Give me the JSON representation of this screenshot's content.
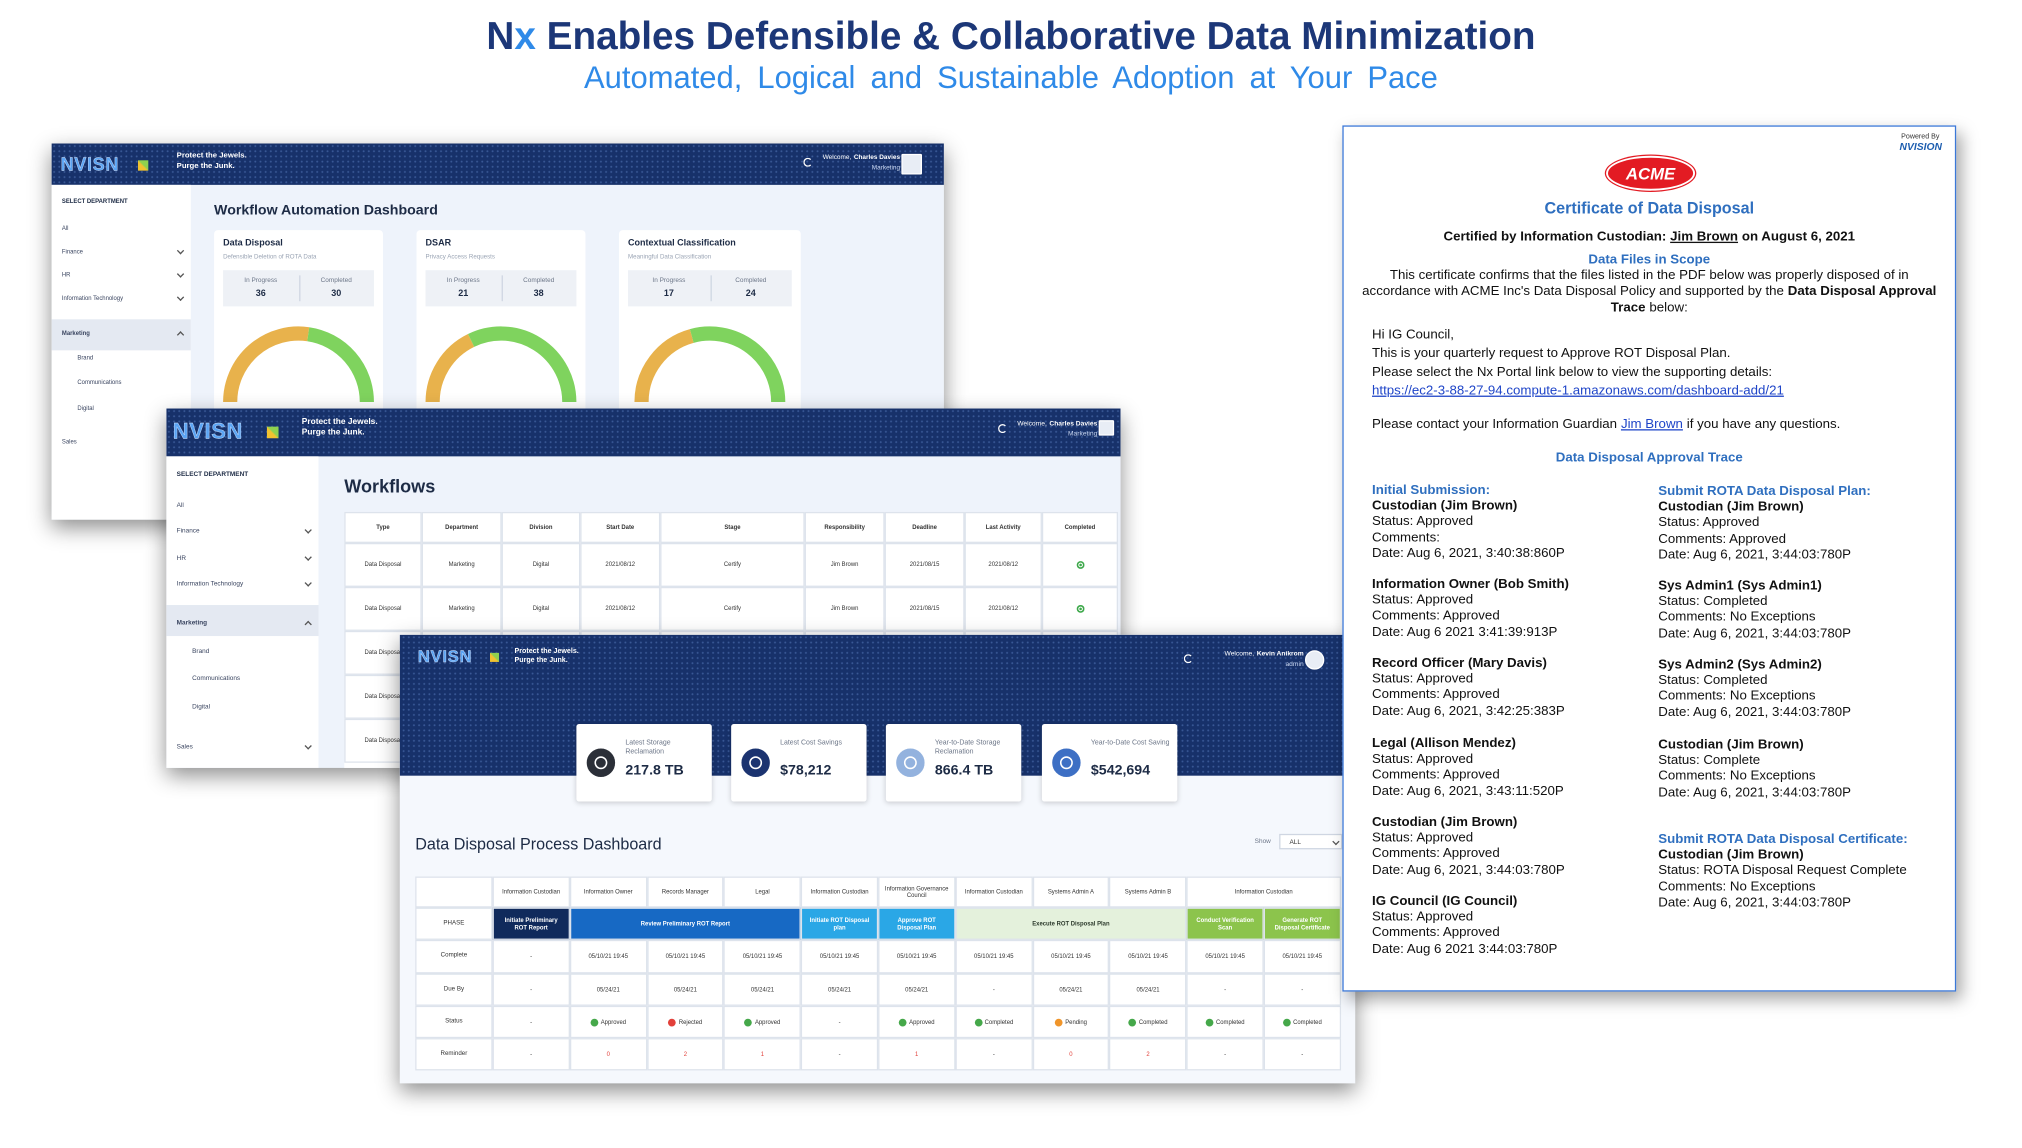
{
  "title": {
    "brand_n": "N",
    "brand_x": "x",
    "text": "Enables Defensible & Collaborative Data Minimization"
  },
  "subtitle": "Automated, Logical and Sustainable Adoption at Your Pace",
  "app": {
    "logo": "NVISN",
    "tagline": [
      "Protect the Jewels.",
      "Purge the Junk."
    ],
    "welcome": "Welcome,",
    "department_heading": "SELECT DEPARTMENT",
    "departments": [
      "All",
      "Finance",
      "HR",
      "Information Technology",
      "Marketing",
      "Brand",
      "Communications",
      "Digital",
      "Sales"
    ]
  },
  "workflow_dashboard": {
    "user": "Charles Davies",
    "role": "Marketing",
    "title": "Workflow Automation Dashboard",
    "in_progress_label": "In Progress",
    "completed_label": "Completed",
    "gauge_colors": {
      "in_progress": "#e8b24c",
      "completed": "#7fd35e"
    },
    "cards": [
      {
        "title": "Data Disposal",
        "subtitle": "Defensible Deletion of ROTA Data",
        "in_progress": 36,
        "completed": 30
      },
      {
        "title": "DSAR",
        "subtitle": "Privacy Access Requests",
        "in_progress": 21,
        "completed": 38
      },
      {
        "title": "Contextual Classification",
        "subtitle": "Meaningful Data Classification",
        "in_progress": 17,
        "completed": 24
      }
    ]
  },
  "workflows": {
    "user": "Charles Davies",
    "role": "Marketing",
    "title": "Workflows",
    "columns": [
      "Type",
      "Department",
      "Division",
      "Start Date",
      "Stage",
      "Responsibility",
      "Deadline",
      "Last Activity",
      "Completed"
    ],
    "rows": [
      [
        "Data Disposal",
        "Marketing",
        "Digital",
        "2021/08/12",
        "Certify",
        "Jim Brown",
        "2021/08/15",
        "2021/08/12"
      ],
      [
        "Data Disposal",
        "Marketing",
        "Digital",
        "2021/08/12",
        "Certify",
        "Jim Brown",
        "2021/08/15",
        "2021/08/12"
      ],
      [
        "Data Disposal"
      ],
      [
        "Data Disposal"
      ],
      [
        "Data Disposal"
      ]
    ]
  },
  "disposal_dashboard": {
    "user": "Kevin Anikrom",
    "role": "admin",
    "kpis": [
      {
        "label": "Latest Storage Reclamation",
        "value": "217.8 TB",
        "color": "#2b2f38"
      },
      {
        "label": "Latest Cost Savings",
        "value": "$78,212",
        "color": "#1b3370"
      },
      {
        "label": "Year-to-Date Storage Reclamation",
        "value": "866.4 TB",
        "color": "#93b2de"
      },
      {
        "label": "Year-to-Date Cost Saving",
        "value": "$542,694",
        "color": "#3d6fc4"
      }
    ],
    "title": "Data Disposal Process Dashboard",
    "show_label": "Show",
    "show_value": "ALL",
    "roles": [
      {
        "label": "Information Custodian",
        "span": 1
      },
      {
        "label": "Information Owner",
        "span": 1
      },
      {
        "label": "Records Manager",
        "span": 1
      },
      {
        "label": "Legal",
        "span": 1
      },
      {
        "label": "Information Custodian",
        "span": 1
      },
      {
        "label": "Information Governance Council",
        "span": 1
      },
      {
        "label": "Information Custodian",
        "span": 1
      },
      {
        "label": "Systems Admin A",
        "span": 1
      },
      {
        "label": "Systems Admin B",
        "span": 1
      },
      {
        "label": "Information Custodian",
        "span": 2
      }
    ],
    "phase_label": "PHASE",
    "phases": [
      {
        "label": "Initiate Preliminary ROT Report",
        "span": 1,
        "color": "#102a5c",
        "text_color": "#ffffff"
      },
      {
        "label": "Review Preliminary ROT Report",
        "span": 3,
        "color": "#1769c4",
        "text_color": "#ffffff"
      },
      {
        "label": "Initiate ROT Disposal plan",
        "span": 1,
        "color": "#2aa7e6",
        "text_color": "#ffffff"
      },
      {
        "label": "Approve ROT Disposal Plan",
        "span": 1,
        "color": "#2aa7e6",
        "text_color": "#ffffff"
      },
      {
        "label": "Execute ROT Disposal Plan",
        "span": 3,
        "color": "#e4f1dc",
        "text_color": "#2c3a2c"
      },
      {
        "label": "Conduct Verification Scan",
        "span": 1,
        "color": "#8cc44c",
        "text_color": "#ffffff"
      },
      {
        "label": "Generate ROT Disposal Certificate",
        "span": 1,
        "color": "#8cc44c",
        "text_color": "#ffffff"
      }
    ],
    "status_colors": {
      "Approved": "#45a84a",
      "Completed": "#45a84a",
      "Rejected": "#e2403a",
      "Pending": "#f0952a"
    },
    "rows": [
      {
        "label": "Complete",
        "kind": "text",
        "cells": [
          "-",
          "05/10/21 19:45",
          "05/10/21 19:45",
          "05/10/21 19:45",
          "05/10/21 19:45",
          "05/10/21 19:45",
          "05/10/21 19:45",
          "05/10/21 19:45",
          "05/10/21 19:45",
          "05/10/21 19:45",
          "05/10/21 19:45"
        ]
      },
      {
        "label": "Due By",
        "kind": "text",
        "cells": [
          "-",
          "05/24/21",
          "05/24/21",
          "05/24/21",
          "05/24/21",
          "05/24/21",
          "-",
          "05/24/21",
          "05/24/21",
          "-",
          "-"
        ]
      },
      {
        "label": "Status",
        "kind": "status",
        "cells": [
          "-",
          "Approved",
          "Rejected",
          "Approved",
          "-",
          "Approved",
          "Completed",
          "Pending",
          "Completed",
          "Completed",
          "Completed"
        ]
      },
      {
        "label": "Reminder",
        "kind": "reminder",
        "cells": [
          "-",
          0,
          2,
          1,
          "-",
          1,
          "-",
          0,
          2,
          "-",
          "-"
        ]
      }
    ]
  },
  "certificate": {
    "powered_by": "Powered By",
    "powered_logo": "NVISION",
    "company": "ACME",
    "title": "Certificate of Data Disposal",
    "certified": [
      "Certified by Information Custodian:",
      "Jim Brown",
      "on August 6, 2021"
    ],
    "files_heading": "Data Files in Scope",
    "statement": [
      "This certificate confirms that the files listed in the PDF below was properly disposed of in accordance with ACME Inc's Data Disposal Policy and supported by the",
      "Data Disposal Approval Trace",
      "below:"
    ],
    "greeting": "Hi IG Council,",
    "request": "This is your quarterly request to Approve ROT Disposal Plan.",
    "instruction": "Please select the Nx Portal link below to view the supporting details:",
    "link": "https://ec2-3-88-27-94.compute-1.amazonaws.com/dashboard-add/21",
    "contact": [
      "Please contact your Information Guardian",
      "Jim Brown",
      "if you have any questions."
    ],
    "trace_heading": "Data Disposal Approval Trace",
    "left": [
      {
        "heading": "Initial Submission:",
        "name": "Custodian (Jim Brown)",
        "lines": [
          "Status: Approved",
          "Comments:",
          "Date: Aug 6, 2021, 3:40:38:860P"
        ]
      },
      {
        "name": "Information Owner (Bob Smith)",
        "lines": [
          "Status: Approved",
          "Comments: Approved",
          "Date: Aug 6 2021 3:41:39:913P"
        ]
      },
      {
        "name": "Record Officer (Mary Davis)",
        "lines": [
          "Status: Approved",
          "Comments: Approved",
          "Date: Aug 6, 2021, 3:42:25:383P"
        ]
      },
      {
        "name": "Legal (Allison Mendez)",
        "lines": [
          "Status: Approved",
          "Comments: Approved",
          "Date: Aug 6, 2021, 3:43:11:520P"
        ]
      },
      {
        "name": "Custodian (Jim Brown)",
        "lines": [
          "Status: Approved",
          "Comments: Approved",
          "Date: Aug 6, 2021, 3:44:03:780P"
        ]
      },
      {
        "name": "IG Council (IG Council)",
        "lines": [
          "Status: Approved",
          "Comments: Approved",
          "Date: Aug 6 2021 3:44:03:780P"
        ]
      }
    ],
    "right": [
      {
        "heading": "Submit ROTA Data Disposal Plan:",
        "name": "Custodian (Jim Brown)",
        "lines": [
          "Status: Approved",
          "Comments: Approved",
          "Date: Aug 6, 2021, 3:44:03:780P"
        ]
      },
      {
        "name": "Sys Admin1 (Sys Admin1)",
        "lines": [
          "Status: Completed",
          "Comments: No Exceptions",
          "Date: Aug 6, 2021, 3:44:03:780P"
        ]
      },
      {
        "name": "Sys Admin2 (Sys Admin2)",
        "lines": [
          "Status: Completed",
          "Comments: No Exceptions",
          "Date: Aug 6, 2021, 3:44:03:780P"
        ]
      },
      {
        "name": "Custodian (Jim Brown)",
        "lines": [
          "Status: Complete",
          "Comments: No Exceptions",
          "Date: Aug 6, 2021, 3:44:03:780P"
        ]
      },
      {
        "heading": "Submit ROTA Data Disposal Certificate:",
        "name": "Custodian (Jim Brown)",
        "lines": [
          "Status: ROTA Disposal Request Complete",
          "Comments: No Exceptions",
          "Date: Aug 6, 2021, 3:44:03:780P"
        ]
      }
    ]
  }
}
